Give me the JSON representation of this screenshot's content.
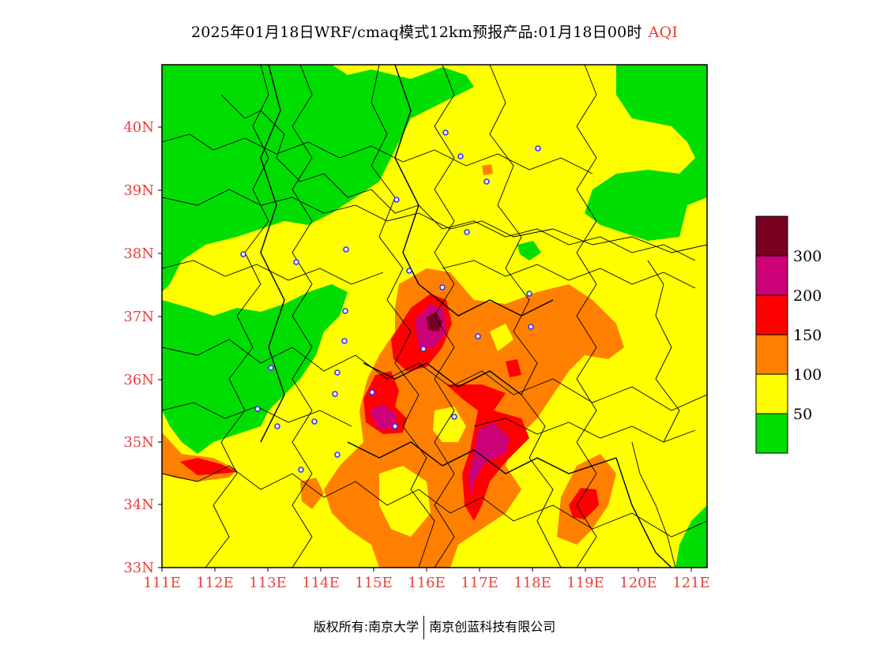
{
  "title": {
    "main": "2025年01月18日WRF/cmaq模式12km预报产品:01月18日00时",
    "variable": "AQI"
  },
  "map": {
    "lat_ticks": [
      "40N",
      "39N",
      "38N",
      "37N",
      "36N",
      "35N",
      "34N",
      "33N"
    ],
    "lon_ticks": [
      "111E",
      "112E",
      "113E",
      "114E",
      "115E",
      "116E",
      "117E",
      "118E",
      "119E",
      "120E",
      "121E"
    ],
    "lon_range": [
      111,
      121.3
    ],
    "lat_range": [
      33,
      40.95
    ]
  },
  "legend": {
    "labels": [
      "300",
      "200",
      "150",
      "100",
      "50"
    ],
    "colors": [
      "#780020",
      "#cc0077",
      "#ff0000",
      "#ff8000",
      "#ffff00",
      "#00dd00"
    ]
  },
  "footer": {
    "left": "版权所有:南京大学",
    "right": "南京创蓝科技有限公司"
  }
}
